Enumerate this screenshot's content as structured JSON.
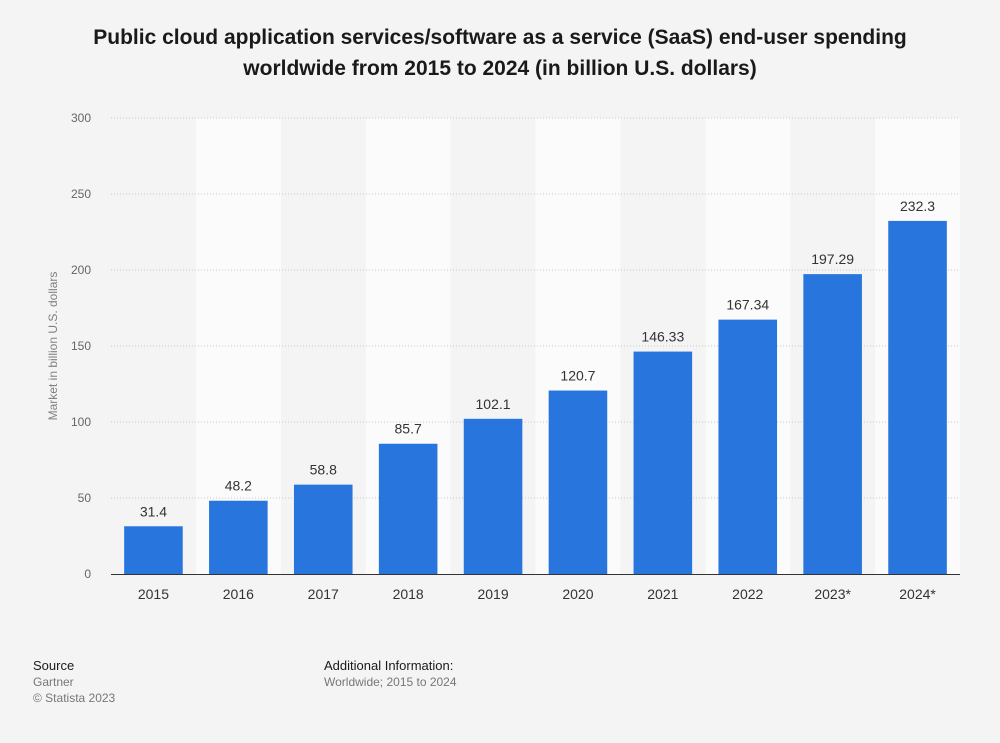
{
  "chart_data": {
    "type": "bar",
    "title": "Public cloud application services/software as a service (SaaS) end-user spending worldwide from 2015 to 2024 (in billion U.S. dollars)",
    "xlabel": "",
    "ylabel": "Market in billion U.S. dollars",
    "categories": [
      "2015",
      "2016",
      "2017",
      "2018",
      "2019",
      "2020",
      "2021",
      "2022",
      "2023*",
      "2024*"
    ],
    "values": [
      31.4,
      48.2,
      58.8,
      85.7,
      102.1,
      120.7,
      146.33,
      167.34,
      197.29,
      232.3
    ],
    "data_labels": [
      "31.4",
      "48.2",
      "58.8",
      "85.7",
      "102.1",
      "120.7",
      "146.33",
      "167.34",
      "197.29",
      "232.3"
    ],
    "ylim": [
      0,
      300
    ],
    "yticks": [
      0,
      50,
      100,
      150,
      200,
      250,
      300
    ],
    "grid": true,
    "colors": {
      "bar": "#2876dd",
      "band": "#fbfbfb",
      "background": "#f4f4f4"
    }
  },
  "footer": {
    "source_heading": "Source",
    "source_name": "Gartner",
    "copyright": "© Statista 2023",
    "info_heading": "Additional Information:",
    "info_text": "Worldwide; 2015 to 2024"
  }
}
